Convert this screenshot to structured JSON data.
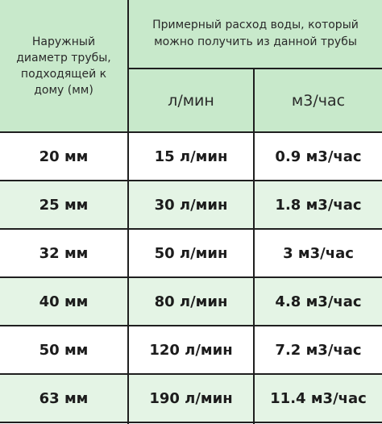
{
  "header": {
    "diameter_label": "Наружный диаметр трубы, подходящей к дому (мм)",
    "flow_label": "Примерный расход воды, который можно получить из данной трубы",
    "unit_lpm": "л/мин",
    "unit_m3h": "м3/час"
  },
  "rows": [
    {
      "diameter": "20 мм",
      "lpm": "15 л/мин",
      "m3h": "0.9 м3/час"
    },
    {
      "diameter": "25 мм",
      "lpm": "30 л/мин",
      "m3h": "1.8 м3/час"
    },
    {
      "diameter": "32 мм",
      "lpm": "50 л/мин",
      "m3h": "3 м3/час"
    },
    {
      "diameter": "40 мм",
      "lpm": "80 л/мин",
      "m3h": "4.8 м3/час"
    },
    {
      "diameter": "50 мм",
      "lpm": "120 л/мин",
      "m3h": "7.2 м3/час"
    },
    {
      "diameter": "63 мм",
      "lpm": "190 л/мин",
      "m3h": "11.4 м3/час"
    }
  ],
  "colors": {
    "header_bg": "#c8e9cb",
    "alt_row_bg": "#e4f4e5",
    "grid_line": "#1f1f1f"
  }
}
